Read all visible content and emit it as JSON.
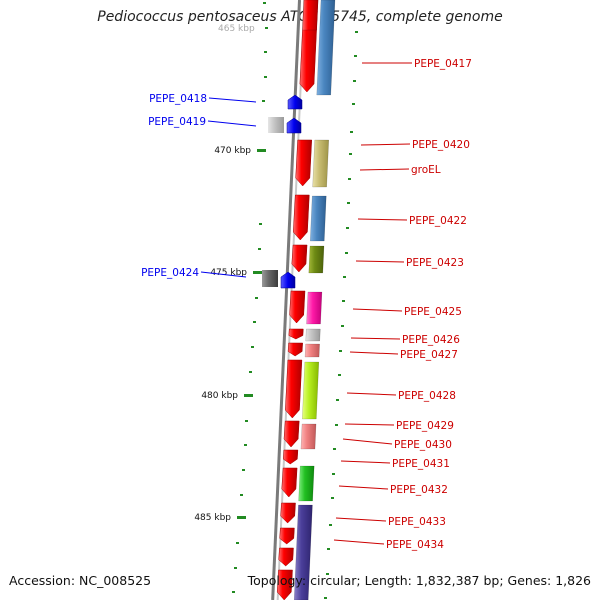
{
  "title": "Pediococcus pentosaceus ATCC 25745, complete genome",
  "footer": {
    "accession": "Accession: NC_008525",
    "stats": "Topology: circular; Length: 1,832,387 bp; Genes: 1,826"
  },
  "scale": {
    "partial_label": "465 kbp",
    "ticks": [
      "470 kbp",
      "475 kbp",
      "480 kbp",
      "485 kbp"
    ]
  },
  "genes_reverse": [
    {
      "label": "PEPE_0418",
      "color": "#0000ee"
    },
    {
      "label": "PEPE_0419",
      "color": "#0000ee"
    },
    {
      "label": "PEPE_0424",
      "color": "#0000ee"
    }
  ],
  "genes_forward": [
    {
      "label": "PEPE_0417",
      "color": "#cc0000"
    },
    {
      "label": "PEPE_0420",
      "color": "#cc0000"
    },
    {
      "label": "groEL",
      "color": "#cc0000"
    },
    {
      "label": "PEPE_0422",
      "color": "#cc0000"
    },
    {
      "label": "PEPE_0423",
      "color": "#cc0000"
    },
    {
      "label": "PEPE_0425",
      "color": "#cc0000"
    },
    {
      "label": "PEPE_0426",
      "color": "#cc0000"
    },
    {
      "label": "PEPE_0427",
      "color": "#cc0000"
    },
    {
      "label": "PEPE_0428",
      "color": "#cc0000"
    },
    {
      "label": "PEPE_0429",
      "color": "#cc0000"
    },
    {
      "label": "PEPE_0430",
      "color": "#cc0000"
    },
    {
      "label": "PEPE_0431",
      "color": "#cc0000"
    },
    {
      "label": "PEPE_0432",
      "color": "#cc0000"
    },
    {
      "label": "PEPE_0433",
      "color": "#cc0000"
    },
    {
      "label": "PEPE_0434",
      "color": "#cc0000"
    }
  ],
  "colors": {
    "backbone": "#8a8a8a",
    "forward_cds": "#ee0000",
    "reverse_cds": "#0000ee",
    "tick": "#228b22"
  }
}
